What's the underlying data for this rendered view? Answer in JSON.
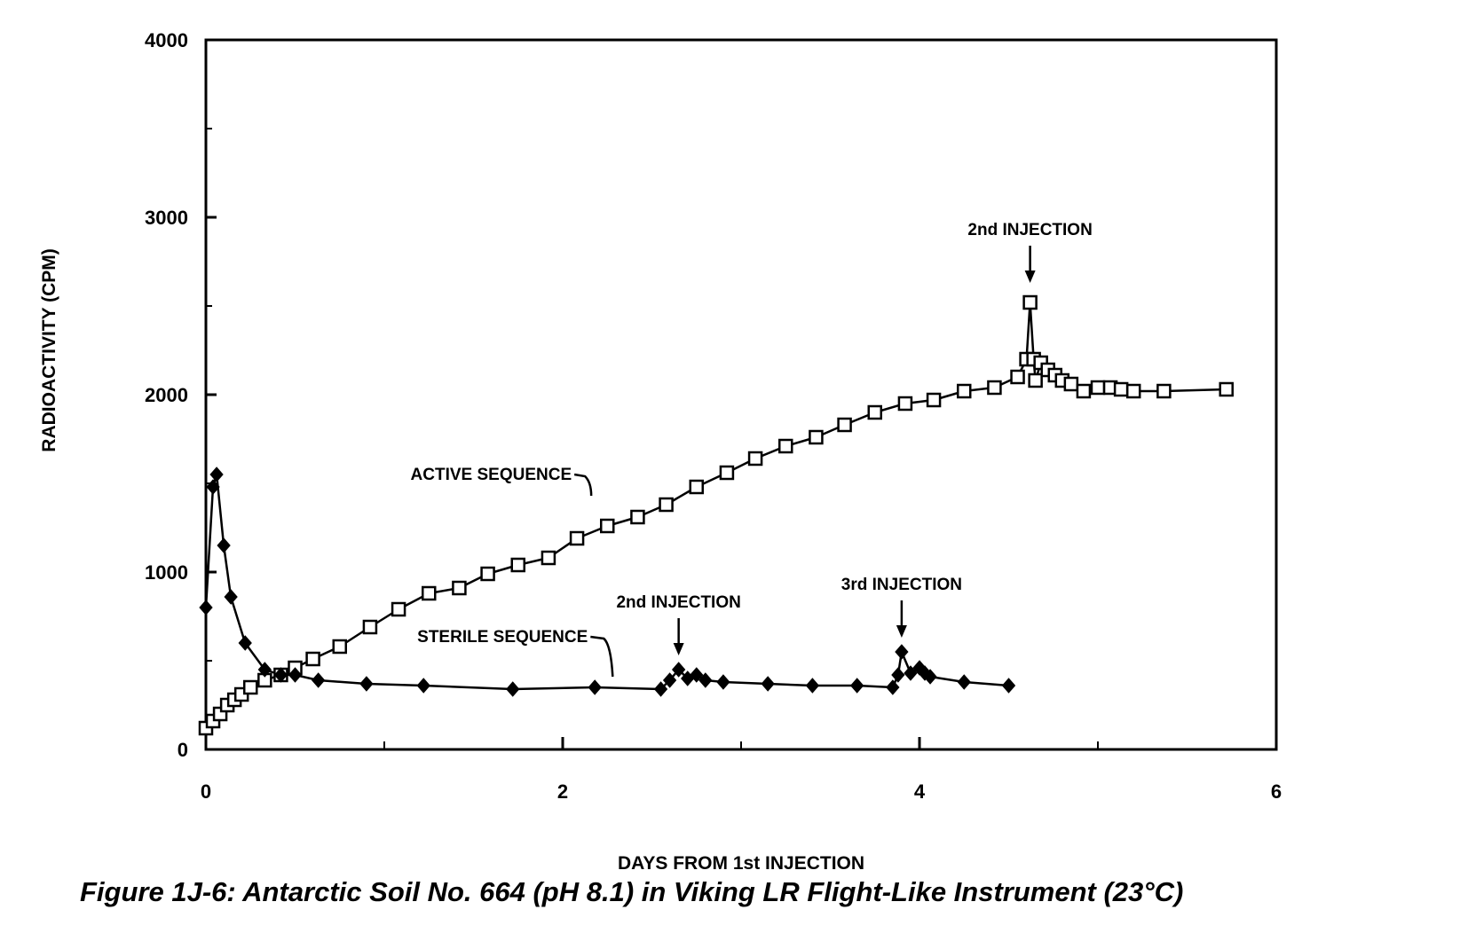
{
  "caption": "Figure 1J-6:  Antarctic Soil No. 664 (pH 8.1) in Viking LR Flight-Like Instrument (23°C)",
  "chart_data": {
    "type": "line",
    "xlabel": "DAYS FROM 1st INJECTION",
    "ylabel": "RADIOACTIVITY (CPM)",
    "xlim": [
      0,
      6
    ],
    "ylim": [
      0,
      4000
    ],
    "x_ticks": [
      "0",
      "2",
      "4",
      "6"
    ],
    "y_ticks": [
      "0",
      "1000",
      "2000",
      "3000",
      "4000"
    ],
    "grid": false,
    "series": [
      {
        "name": "ACTIVE SEQUENCE",
        "marker": "square",
        "points": [
          [
            0.0,
            120
          ],
          [
            0.04,
            160
          ],
          [
            0.08,
            200
          ],
          [
            0.12,
            250
          ],
          [
            0.16,
            280
          ],
          [
            0.2,
            310
          ],
          [
            0.25,
            350
          ],
          [
            0.33,
            390
          ],
          [
            0.42,
            420
          ],
          [
            0.5,
            460
          ],
          [
            0.6,
            510
          ],
          [
            0.75,
            580
          ],
          [
            0.92,
            690
          ],
          [
            1.08,
            790
          ],
          [
            1.25,
            880
          ],
          [
            1.42,
            910
          ],
          [
            1.58,
            990
          ],
          [
            1.75,
            1040
          ],
          [
            1.92,
            1080
          ],
          [
            2.08,
            1190
          ],
          [
            2.25,
            1260
          ],
          [
            2.42,
            1310
          ],
          [
            2.58,
            1380
          ],
          [
            2.75,
            1480
          ],
          [
            2.92,
            1560
          ],
          [
            3.08,
            1640
          ],
          [
            3.25,
            1710
          ],
          [
            3.42,
            1760
          ],
          [
            3.58,
            1830
          ],
          [
            3.75,
            1900
          ],
          [
            3.92,
            1950
          ],
          [
            4.08,
            1970
          ],
          [
            4.25,
            2020
          ],
          [
            4.42,
            2040
          ],
          [
            4.55,
            2100
          ],
          [
            4.6,
            2200
          ],
          [
            4.62,
            2520
          ],
          [
            4.64,
            2200
          ],
          [
            4.65,
            2080
          ],
          [
            4.68,
            2180
          ],
          [
            4.72,
            2140
          ],
          [
            4.76,
            2110
          ],
          [
            4.8,
            2080
          ],
          [
            4.85,
            2060
          ],
          [
            4.92,
            2020
          ],
          [
            5.0,
            2040
          ],
          [
            5.07,
            2040
          ],
          [
            5.13,
            2030
          ],
          [
            5.2,
            2020
          ],
          [
            5.37,
            2020
          ],
          [
            5.72,
            2030
          ]
        ]
      },
      {
        "name": "STERILE SEQUENCE",
        "marker": "diamond",
        "points": [
          [
            0.0,
            800
          ],
          [
            0.04,
            1480
          ],
          [
            0.06,
            1550
          ],
          [
            0.1,
            1150
          ],
          [
            0.14,
            860
          ],
          [
            0.22,
            600
          ],
          [
            0.33,
            450
          ],
          [
            0.42,
            420
          ],
          [
            0.5,
            420
          ],
          [
            0.63,
            390
          ],
          [
            0.9,
            370
          ],
          [
            1.22,
            360
          ],
          [
            1.72,
            340
          ],
          [
            2.18,
            350
          ],
          [
            2.55,
            340
          ],
          [
            2.6,
            390
          ],
          [
            2.65,
            450
          ],
          [
            2.7,
            400
          ],
          [
            2.75,
            420
          ],
          [
            2.8,
            390
          ],
          [
            2.9,
            380
          ],
          [
            3.15,
            370
          ],
          [
            3.4,
            360
          ],
          [
            3.65,
            360
          ],
          [
            3.85,
            350
          ],
          [
            3.88,
            420
          ],
          [
            3.9,
            550
          ],
          [
            3.95,
            430
          ],
          [
            4.0,
            460
          ],
          [
            4.03,
            430
          ],
          [
            4.06,
            410
          ],
          [
            4.25,
            380
          ],
          [
            4.5,
            360
          ]
        ]
      }
    ],
    "annotations": [
      {
        "text": "ACTIVE SEQUENCE",
        "x": 2.15,
        "y": 1230
      },
      {
        "text": "STERILE SEQUENCE",
        "x": 2.32,
        "y": 370
      },
      {
        "text": "2nd INJECTION",
        "x": 4.62,
        "y": 2600
      },
      {
        "text": "2nd INJECTION",
        "x": 2.65,
        "y": 500
      },
      {
        "text": "3rd INJECTION",
        "x": 3.9,
        "y": 600
      }
    ]
  }
}
